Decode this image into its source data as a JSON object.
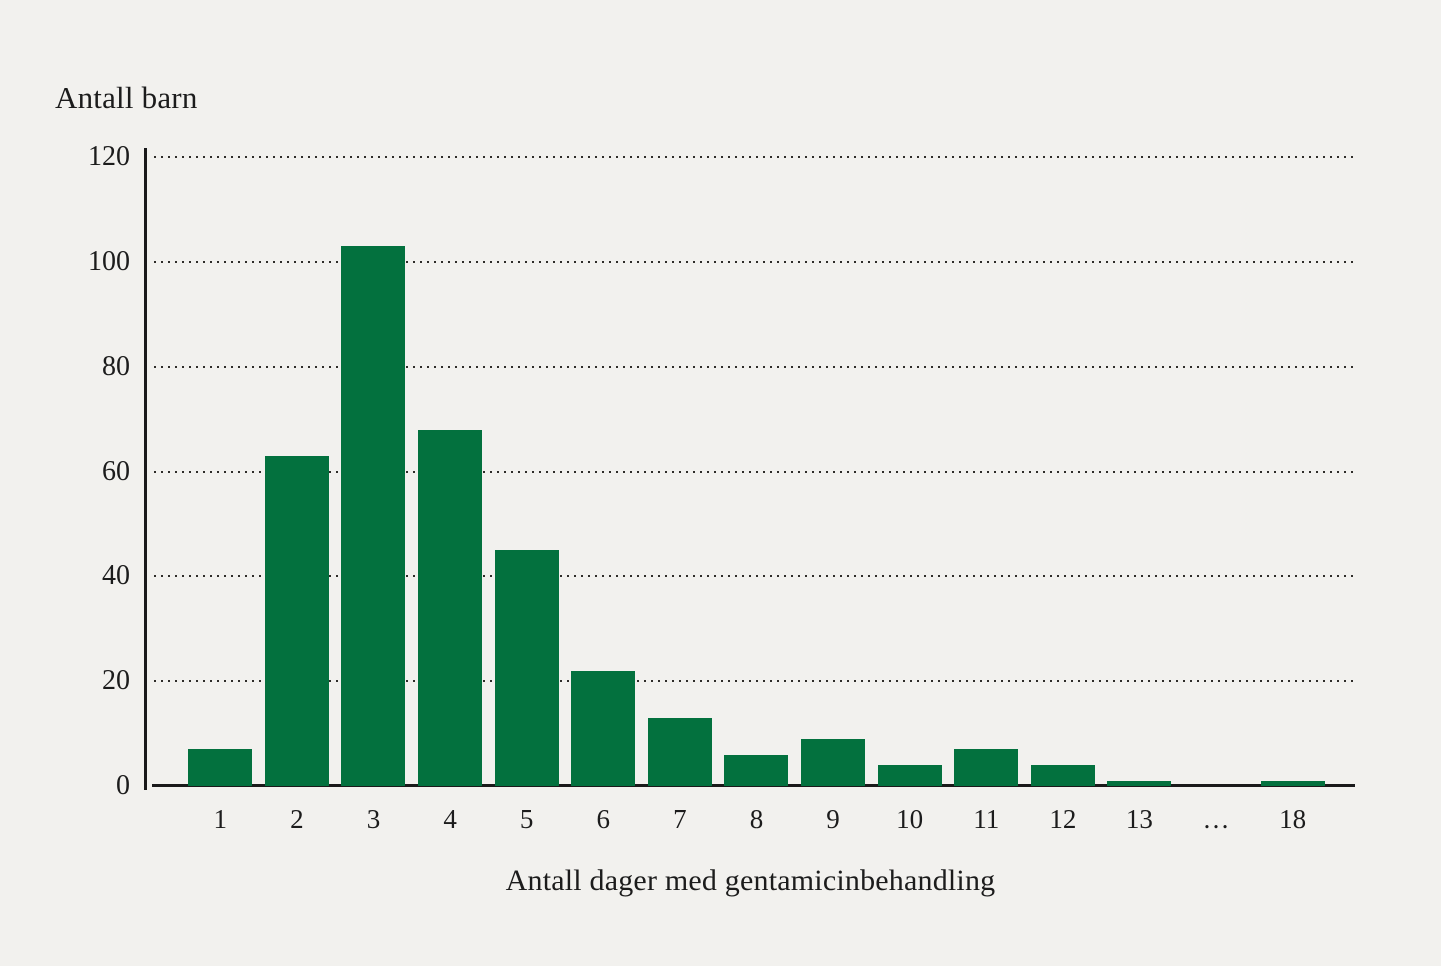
{
  "chart_data": {
    "type": "bar",
    "title": "",
    "ylabel": "Antall barn",
    "xlabel": "Antall dager med gentamicinbehandling",
    "categories": [
      "1",
      "2",
      "3",
      "4",
      "5",
      "6",
      "7",
      "8",
      "9",
      "10",
      "11",
      "12",
      "13",
      "…",
      "18"
    ],
    "values": [
      7,
      63,
      103,
      68,
      45,
      22,
      13,
      6,
      9,
      4,
      7,
      4,
      1,
      0,
      1
    ],
    "y_ticks": [
      0,
      20,
      40,
      60,
      80,
      100,
      120
    ],
    "ylim": [
      0,
      120
    ],
    "grid": "horizontal-dotted",
    "legend": "none",
    "bar_color": "#03713e",
    "background_color": "#f2f1ee",
    "axis_color": "#1a1a1a",
    "text_color": "#1c1c1c"
  }
}
